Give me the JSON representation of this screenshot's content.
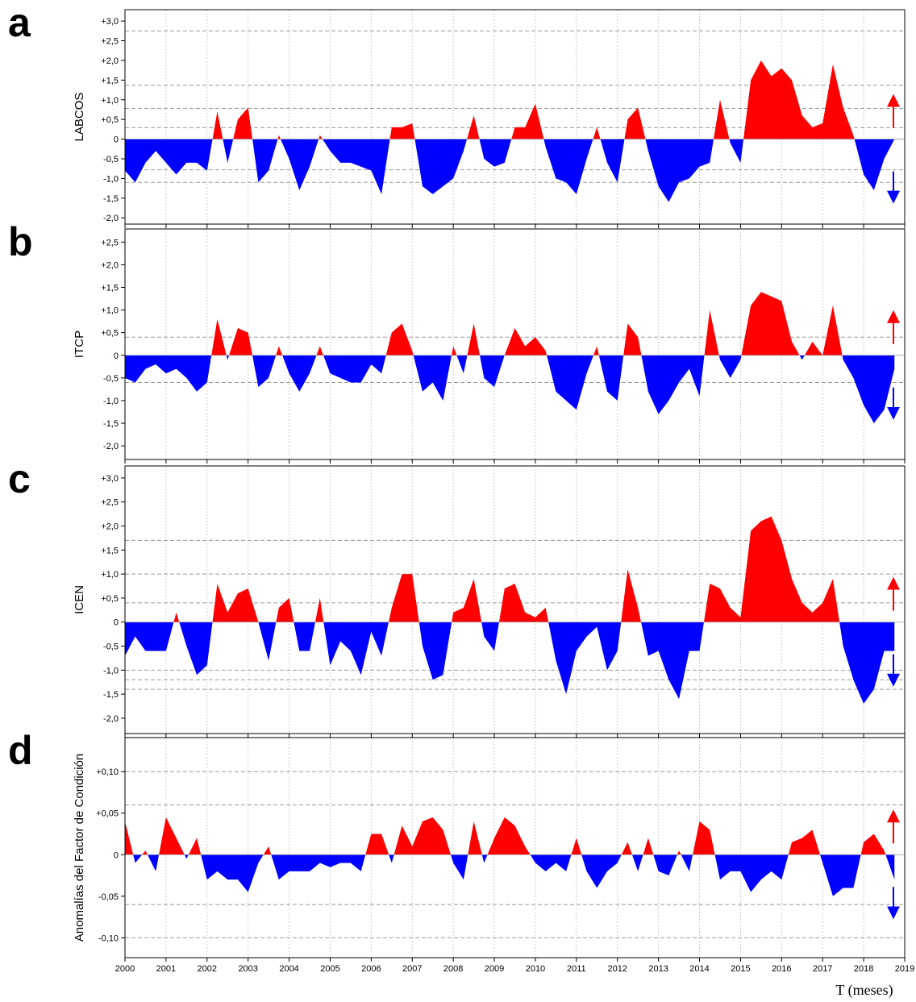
{
  "chart_data": [
    {
      "type": "area",
      "panel_label": "a",
      "y_label": "LABCOS",
      "pos_color": "#ff0000",
      "neg_color": "#0000ff",
      "x": [
        2000,
        2000.25,
        2000.5,
        2000.75,
        2001,
        2001.25,
        2001.5,
        2001.75,
        2002,
        2002.25,
        2002.5,
        2002.75,
        2003,
        2003.25,
        2003.5,
        2003.75,
        2004,
        2004.25,
        2004.5,
        2004.75,
        2005,
        2005.25,
        2005.5,
        2005.75,
        2006,
        2006.25,
        2006.5,
        2006.75,
        2007,
        2007.25,
        2007.5,
        2007.75,
        2008,
        2008.25,
        2008.5,
        2008.75,
        2009,
        2009.25,
        2009.5,
        2009.75,
        2010,
        2010.25,
        2010.5,
        2010.75,
        2011,
        2011.25,
        2011.5,
        2011.75,
        2012,
        2012.25,
        2012.5,
        2012.75,
        2013,
        2013.25,
        2013.5,
        2013.75,
        2014,
        2014.25,
        2014.5,
        2014.75,
        2015,
        2015.25,
        2015.5,
        2015.75,
        2016,
        2016.25,
        2016.5,
        2016.75,
        2017,
        2017.25,
        2017.5,
        2017.75,
        2018,
        2018.25,
        2018.5,
        2018.75
      ],
      "values": [
        -0.8,
        -1.1,
        -0.6,
        -0.3,
        -0.6,
        -0.9,
        -0.6,
        -0.6,
        -0.8,
        0.7,
        -0.6,
        0.5,
        0.8,
        -1.1,
        -0.8,
        0.1,
        -0.5,
        -1.3,
        -0.7,
        0.1,
        -0.3,
        -0.6,
        -0.6,
        -0.7,
        -0.8,
        -1.4,
        0.3,
        0.3,
        0.4,
        -1.2,
        -1.4,
        -1.2,
        -1.0,
        -0.3,
        0.6,
        -0.5,
        -0.7,
        -0.6,
        0.3,
        0.3,
        0.9,
        -0.2,
        -1.0,
        -1.1,
        -1.4,
        -0.5,
        0.3,
        -0.6,
        -1.1,
        0.5,
        0.8,
        -0.3,
        -1.2,
        -1.6,
        -1.1,
        -1.0,
        -0.7,
        -0.6,
        1.0,
        -0.1,
        -0.6,
        1.5,
        2.0,
        1.6,
        1.8,
        1.5,
        0.6,
        0.3,
        0.4,
        1.9,
        0.8,
        0.1,
        -0.9,
        -1.3,
        -0.5,
        0.0
      ],
      "xlim": [
        2000,
        2019
      ],
      "xticks": [
        2000,
        2001,
        2002,
        2003,
        2004,
        2005,
        2006,
        2007,
        2008,
        2009,
        2010,
        2011,
        2012,
        2013,
        2014,
        2015,
        2016,
        2017,
        2018,
        2019
      ],
      "x_tick_labels": false,
      "ylim": [
        -2.16,
        3.29
      ],
      "yticks": [
        {
          "value": 3,
          "label": "+3,0"
        },
        {
          "value": 2.5,
          "label": "+2,5"
        },
        {
          "value": 2,
          "label": "+2,0"
        },
        {
          "value": 1.5,
          "label": "+1,5"
        },
        {
          "value": 1,
          "label": "+1,0"
        },
        {
          "value": 0.5,
          "label": "+0,5"
        },
        0,
        {
          "value": -0.5,
          "label": "-0,5"
        },
        {
          "value": -1,
          "label": "-1,0"
        },
        {
          "value": -1.5,
          "label": "-1,5"
        },
        {
          "value": -2,
          "label": "-2,0"
        }
      ],
      "reference_lines": [
        2.75,
        1.37,
        0.78,
        0.29,
        -0.78,
        -1.1
      ],
      "grid": true
    },
    {
      "type": "area",
      "panel_label": "b",
      "y_label": "ITCP",
      "pos_color": "#ff0000",
      "neg_color": "#0000ff",
      "x": [
        2000,
        2000.25,
        2000.5,
        2000.75,
        2001,
        2001.25,
        2001.5,
        2001.75,
        2002,
        2002.25,
        2002.5,
        2002.75,
        2003,
        2003.25,
        2003.5,
        2003.75,
        2004,
        2004.25,
        2004.5,
        2004.75,
        2005,
        2005.25,
        2005.5,
        2005.75,
        2006,
        2006.25,
        2006.5,
        2006.75,
        2007,
        2007.25,
        2007.5,
        2007.75,
        2008,
        2008.25,
        2008.5,
        2008.75,
        2009,
        2009.25,
        2009.5,
        2009.75,
        2010,
        2010.25,
        2010.5,
        2010.75,
        2011,
        2011.25,
        2011.5,
        2011.75,
        2012,
        2012.25,
        2012.5,
        2012.75,
        2013,
        2013.25,
        2013.5,
        2013.75,
        2014,
        2014.25,
        2014.5,
        2014.75,
        2015,
        2015.25,
        2015.5,
        2015.75,
        2016,
        2016.25,
        2016.5,
        2016.75,
        2017,
        2017.25,
        2017.5,
        2017.75,
        2018,
        2018.25,
        2018.5,
        2018.75
      ],
      "values": [
        -0.5,
        -0.6,
        -0.3,
        -0.2,
        -0.4,
        -0.3,
        -0.5,
        -0.8,
        -0.6,
        0.8,
        -0.1,
        0.6,
        0.5,
        -0.7,
        -0.5,
        0.2,
        -0.4,
        -0.8,
        -0.4,
        0.2,
        -0.4,
        -0.5,
        -0.6,
        -0.6,
        -0.2,
        -0.4,
        0.5,
        0.7,
        0.1,
        -0.8,
        -0.6,
        -1.0,
        0.2,
        -0.4,
        0.7,
        -0.5,
        -0.7,
        0.0,
        0.6,
        0.2,
        0.4,
        0.1,
        -0.8,
        -1.0,
        -1.2,
        -0.4,
        0.2,
        -0.8,
        -1.0,
        0.7,
        0.4,
        -0.8,
        -1.3,
        -1.0,
        -0.6,
        -0.3,
        -0.9,
        1.0,
        -0.1,
        -0.5,
        -0.1,
        1.1,
        1.4,
        1.3,
        1.2,
        0.3,
        -0.1,
        0.3,
        0.0,
        1.1,
        -0.1,
        -0.5,
        -1.1,
        -1.5,
        -1.2,
        -0.3
      ],
      "xlim": [
        2000,
        2019
      ],
      "xticks": [
        2000,
        2001,
        2002,
        2003,
        2004,
        2005,
        2006,
        2007,
        2008,
        2009,
        2010,
        2011,
        2012,
        2013,
        2014,
        2015,
        2016,
        2017,
        2018,
        2019
      ],
      "x_tick_labels": false,
      "ylim": [
        -2.3,
        2.79
      ],
      "yticks": [
        {
          "value": 2.5,
          "label": "+2,5"
        },
        {
          "value": 2,
          "label": "+2,0"
        },
        {
          "value": 1.5,
          "label": "+1,5"
        },
        {
          "value": 1,
          "label": "+1,0"
        },
        {
          "value": 0.5,
          "label": "+0,5"
        },
        0,
        {
          "value": -0.5,
          "label": "-0,5"
        },
        {
          "value": -1,
          "label": "-1,0"
        },
        {
          "value": -1.5,
          "label": "-1,5"
        },
        {
          "value": -2,
          "label": "-2,0"
        }
      ],
      "reference_lines": [
        0.4,
        -0.6
      ],
      "grid": true
    },
    {
      "type": "area",
      "panel_label": "c",
      "y_label": "ICEN",
      "pos_color": "#ff0000",
      "neg_color": "#0000ff",
      "x": [
        2000,
        2000.25,
        2000.5,
        2000.75,
        2001,
        2001.25,
        2001.5,
        2001.75,
        2002,
        2002.25,
        2002.5,
        2002.75,
        2003,
        2003.25,
        2003.5,
        2003.75,
        2004,
        2004.25,
        2004.5,
        2004.75,
        2005,
        2005.25,
        2005.5,
        2005.75,
        2006,
        2006.25,
        2006.5,
        2006.75,
        2007,
        2007.25,
        2007.5,
        2007.75,
        2008,
        2008.25,
        2008.5,
        2008.75,
        2009,
        2009.25,
        2009.5,
        2009.75,
        2010,
        2010.25,
        2010.5,
        2010.75,
        2011,
        2011.25,
        2011.5,
        2011.75,
        2012,
        2012.25,
        2012.5,
        2012.75,
        2013,
        2013.25,
        2013.5,
        2013.75,
        2014,
        2014.25,
        2014.5,
        2014.75,
        2015,
        2015.25,
        2015.5,
        2015.75,
        2016,
        2016.25,
        2016.5,
        2016.75,
        2017,
        2017.25,
        2017.5,
        2017.75,
        2018,
        2018.25,
        2018.5,
        2018.75
      ],
      "values": [
        -0.7,
        -0.3,
        -0.6,
        -0.6,
        -0.6,
        0.2,
        -0.5,
        -1.1,
        -0.9,
        0.8,
        0.2,
        0.6,
        0.7,
        0.0,
        -0.8,
        0.3,
        0.5,
        -0.6,
        -0.6,
        0.5,
        -0.9,
        -0.4,
        -0.6,
        -1.1,
        -0.2,
        -0.7,
        0.3,
        1.0,
        1.0,
        -0.5,
        -1.2,
        -1.1,
        0.2,
        0.3,
        0.9,
        -0.3,
        -0.6,
        0.7,
        0.8,
        0.2,
        0.1,
        0.3,
        -0.8,
        -1.5,
        -0.6,
        -0.3,
        -0.1,
        -1.0,
        -0.6,
        1.1,
        0.3,
        -0.7,
        -0.6,
        -1.2,
        -1.6,
        -0.6,
        -0.6,
        0.8,
        0.7,
        0.3,
        0.1,
        1.9,
        2.1,
        2.2,
        1.7,
        0.9,
        0.4,
        0.2,
        0.4,
        0.9,
        -0.5,
        -1.2,
        -1.7,
        -1.4,
        -0.6,
        -0.6
      ],
      "xlim": [
        2000,
        2019
      ],
      "xticks": [
        2000,
        2001,
        2002,
        2003,
        2004,
        2005,
        2006,
        2007,
        2008,
        2009,
        2010,
        2011,
        2012,
        2013,
        2014,
        2015,
        2016,
        2017,
        2018,
        2019
      ],
      "x_tick_labels": false,
      "ylim": [
        -2.32,
        3.25
      ],
      "yticks": [
        {
          "value": 3,
          "label": "+3,0"
        },
        {
          "value": 2.5,
          "label": "+2,5"
        },
        {
          "value": 2,
          "label": "+2,0"
        },
        {
          "value": 1.5,
          "label": "+1,5"
        },
        {
          "value": 1,
          "label": "+1,0"
        },
        {
          "value": 0.5,
          "label": "+0,5"
        },
        0,
        {
          "value": -0.5,
          "label": "-0,5"
        },
        {
          "value": -1,
          "label": "-1,0"
        },
        {
          "value": -1.5,
          "label": "-1,5"
        },
        {
          "value": -2,
          "label": "-2,0"
        }
      ],
      "reference_lines": [
        1.7,
        1.0,
        0.4,
        -1.0,
        -1.2,
        -1.4
      ],
      "grid": true
    },
    {
      "type": "area",
      "panel_label": "d",
      "y_label": "Anomalías del Factor de Condición",
      "x_label": "T (meses)",
      "pos_color": "#ff0000",
      "neg_color": "#0000ff",
      "x": [
        2000,
        2000.25,
        2000.5,
        2000.75,
        2001,
        2001.25,
        2001.5,
        2001.75,
        2002,
        2002.25,
        2002.5,
        2002.75,
        2003,
        2003.25,
        2003.5,
        2003.75,
        2004,
        2004.25,
        2004.5,
        2004.75,
        2005,
        2005.25,
        2005.5,
        2005.75,
        2006,
        2006.25,
        2006.5,
        2006.75,
        2007,
        2007.25,
        2007.5,
        2007.75,
        2008,
        2008.25,
        2008.5,
        2008.75,
        2009,
        2009.25,
        2009.5,
        2009.75,
        2010,
        2010.25,
        2010.5,
        2010.75,
        2011,
        2011.25,
        2011.5,
        2011.75,
        2012,
        2012.25,
        2012.5,
        2012.75,
        2013,
        2013.25,
        2013.5,
        2013.75,
        2014,
        2014.25,
        2014.5,
        2014.75,
        2015,
        2015.25,
        2015.5,
        2015.75,
        2016,
        2016.25,
        2016.5,
        2016.75,
        2017,
        2017.25,
        2017.5,
        2017.75,
        2018,
        2018.25,
        2018.5,
        2018.75
      ],
      "values": [
        0.04,
        -0.01,
        0.005,
        -0.02,
        0.045,
        0.02,
        -0.005,
        0.02,
        -0.03,
        -0.02,
        -0.03,
        -0.03,
        -0.045,
        -0.01,
        0.01,
        -0.03,
        -0.02,
        -0.02,
        -0.02,
        -0.01,
        -0.015,
        -0.01,
        -0.01,
        -0.02,
        0.025,
        0.025,
        -0.01,
        0.035,
        0.01,
        0.04,
        0.045,
        0.03,
        -0.01,
        -0.03,
        0.04,
        -0.01,
        0.02,
        0.045,
        0.035,
        0.01,
        -0.01,
        -0.02,
        -0.01,
        -0.02,
        0.02,
        -0.02,
        -0.04,
        -0.02,
        -0.01,
        0.015,
        -0.02,
        0.02,
        -0.02,
        -0.025,
        0.005,
        -0.02,
        0.04,
        0.03,
        -0.03,
        -0.02,
        -0.02,
        -0.045,
        -0.03,
        -0.02,
        -0.03,
        0.015,
        0.02,
        0.03,
        -0.01,
        -0.05,
        -0.04,
        -0.04,
        0.015,
        0.025,
        0.005,
        -0.03
      ],
      "xlim": [
        2000,
        2019
      ],
      "xticks": [
        2000,
        2001,
        2002,
        2003,
        2004,
        2005,
        2006,
        2007,
        2008,
        2009,
        2010,
        2011,
        2012,
        2013,
        2014,
        2015,
        2016,
        2017,
        2018,
        2019
      ],
      "x_tick_labels": true,
      "ylim": [
        -0.124,
        0.141
      ],
      "yticks": [
        {
          "value": 0.1,
          "label": "+0,10"
        },
        {
          "value": 0.05,
          "label": "+0,05"
        },
        0,
        {
          "value": -0.05,
          "label": "-0,05"
        },
        {
          "value": -0.1,
          "label": "-0,10"
        }
      ],
      "reference_lines": [
        0.1,
        0.06,
        -0.06,
        -0.1
      ],
      "grid": true
    }
  ]
}
